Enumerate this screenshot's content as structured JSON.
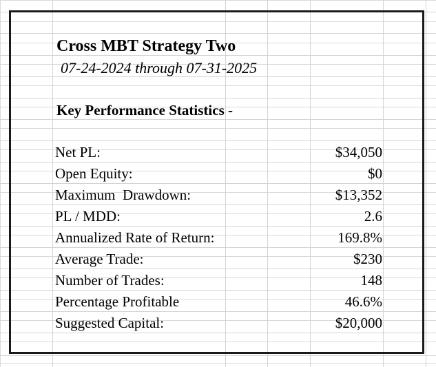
{
  "report": {
    "title": "Cross MBT Strategy Two",
    "date_range": "07-24-2024 through 07-31-2025",
    "section_heading": "Key Performance Statistics -",
    "stats": [
      {
        "label": "Net PL:",
        "value": "$34,050"
      },
      {
        "label": "Open Equity:",
        "value": "$0"
      },
      {
        "label": "Maximum  Drawdown:",
        "value": "$13,352"
      },
      {
        "label": "PL / MDD:",
        "value": "2.6"
      },
      {
        "label": "Annualized Rate of Return:",
        "value": "169.8%"
      },
      {
        "label": "Average Trade:",
        "value": "$230"
      },
      {
        "label": "Number of Trades:",
        "value": "148"
      },
      {
        "label": "Percentage Profitable",
        "value": "46.6%"
      },
      {
        "label": "Suggested Capital:",
        "value": "$20,000"
      }
    ]
  }
}
